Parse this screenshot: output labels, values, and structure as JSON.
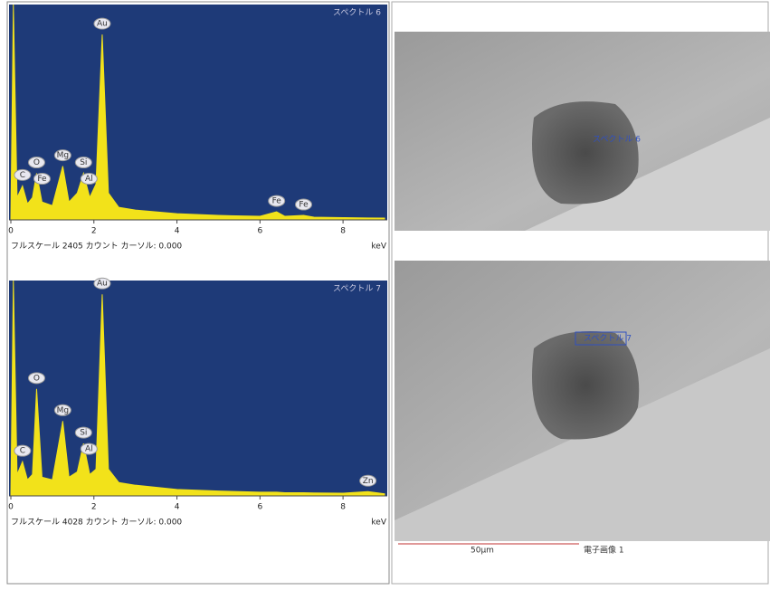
{
  "chart_data": [
    {
      "type": "spectrum",
      "title": "スペクトル 6",
      "footer": "フルスケール 2405 カウント カーソル: 0.000",
      "x_label": "keV",
      "x": [
        0,
        0.06,
        0.15,
        0.28,
        0.4,
        0.52,
        0.62,
        0.75,
        1.0,
        1.25,
        1.4,
        1.6,
        1.75,
        1.9,
        2.05,
        2.2,
        2.35,
        2.6,
        3.0,
        4.0,
        5.0,
        6.0,
        6.4,
        6.6,
        7.05,
        7.3,
        8.0,
        8.6,
        9.0
      ],
      "values": [
        0,
        2405,
        250,
        380,
        180,
        250,
        520,
        200,
        160,
        600,
        200,
        300,
        520,
        250,
        400,
        2070,
        300,
        140,
        110,
        70,
        50,
        40,
        90,
        40,
        50,
        30,
        25,
        22,
        20
      ],
      "color": "#f2e21a",
      "background": "#1e3a78",
      "xlim": [
        0,
        9
      ],
      "xticks": [
        0,
        2,
        4,
        6,
        8
      ],
      "ylim": [
        0,
        2405
      ],
      "annotations": [
        {
          "text": "C",
          "x": 0.28
        },
        {
          "text": "O",
          "x": 0.62
        },
        {
          "text": "Fe",
          "x": 0.62
        },
        {
          "text": "Mg",
          "x": 1.25
        },
        {
          "text": "Si",
          "x": 1.75
        },
        {
          "text": "Al",
          "x": 1.75
        },
        {
          "text": "Au",
          "x": 2.2
        },
        {
          "text": "Fe",
          "x": 6.4
        },
        {
          "text": "Fe",
          "x": 7.05
        }
      ]
    },
    {
      "type": "spectrum",
      "title": "スペクトル 7",
      "footer": "フルスケール 4028 カウント カーソル: 0.000",
      "x_label": "keV",
      "x": [
        0,
        0.06,
        0.15,
        0.28,
        0.4,
        0.52,
        0.62,
        0.75,
        1.0,
        1.25,
        1.4,
        1.6,
        1.75,
        1.9,
        2.05,
        2.2,
        2.35,
        2.6,
        3.0,
        4.0,
        5.0,
        6.0,
        6.4,
        6.6,
        7.05,
        7.3,
        8.0,
        8.6,
        9.0
      ],
      "values": [
        0,
        4028,
        400,
        640,
        300,
        400,
        2000,
        350,
        300,
        1400,
        350,
        450,
        980,
        400,
        500,
        3770,
        500,
        250,
        200,
        120,
        90,
        70,
        70,
        60,
        60,
        55,
        50,
        80,
        40
      ],
      "color": "#f2e21a",
      "background": "#1e3a78",
      "xlim": [
        0,
        9
      ],
      "xticks": [
        0,
        2,
        4,
        6,
        8
      ],
      "ylim": [
        0,
        4028
      ],
      "annotations": [
        {
          "text": "C",
          "x": 0.28
        },
        {
          "text": "O",
          "x": 0.62
        },
        {
          "text": "Mg",
          "x": 1.25
        },
        {
          "text": "Si",
          "x": 1.75
        },
        {
          "text": "Al",
          "x": 1.75
        },
        {
          "text": "Au",
          "x": 2.2
        },
        {
          "text": "Zn",
          "x": 8.6
        }
      ]
    }
  ],
  "images": [
    {
      "label": "スペクトル 6"
    },
    {
      "label": "スペクトル 7"
    }
  ],
  "scale_bar": "50µm",
  "image_caption": "電子画像 1"
}
